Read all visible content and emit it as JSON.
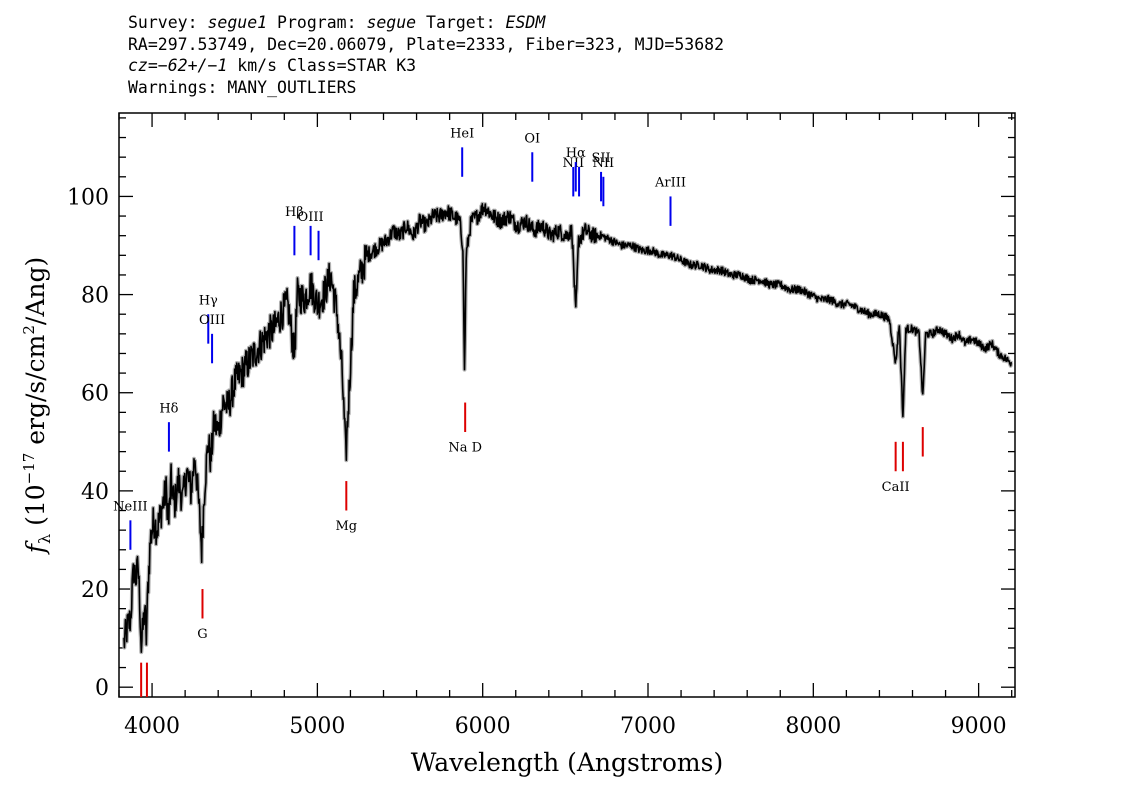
{
  "header": {
    "line1": {
      "survey_label": "Survey: ",
      "survey": "segue1",
      "program_label": " Program: ",
      "program": "segue",
      "target_label": " Target: ",
      "target": "ESDM"
    },
    "line2": "RA=297.53749, Dec=20.06079, Plate=2333, Fiber=323, MJD=53682",
    "line3": {
      "cz": "cz",
      "value": "=−62+/−1",
      "rest": " km/s Class=STAR K3"
    },
    "line4": "Warnings: MANY_OUTLIERS"
  },
  "colors": {
    "spectrum": "#000000",
    "error_band": "#b0b0b0",
    "emission": "#0000ee",
    "absorption": "#dd0000"
  },
  "chart_data": {
    "type": "line",
    "title": "",
    "xlabel": "Wavelength (Angstroms)",
    "ylabel": "fλ (10−17 erg/s/cm2/Ang)",
    "ylabel_parts": {
      "f": "f",
      "sub": "λ",
      "pre": " (10",
      "exp1": "−17",
      "mid": " erg/s/cm",
      "exp2": "2",
      "post": "/Ang)"
    },
    "xlim": [
      3800,
      9220
    ],
    "ylim": [
      -2,
      117
    ],
    "xticks": [
      4000,
      5000,
      6000,
      7000,
      8000,
      9000
    ],
    "xtick_labels": [
      "4000",
      "5000",
      "6000",
      "7000",
      "8000",
      "9000"
    ],
    "yticks": [
      0,
      20,
      40,
      60,
      80,
      100
    ],
    "ytick_labels": [
      "0",
      "20",
      "40",
      "60",
      "80",
      "100"
    ],
    "grid": false,
    "series": [
      {
        "values": [
          [
            3830,
            9
          ],
          [
            3850,
            12
          ],
          [
            3870,
            14
          ],
          [
            3880,
            20
          ],
          [
            3890,
            24
          ],
          [
            3905,
            22
          ],
          [
            3915,
            25
          ],
          [
            3925,
            18
          ],
          [
            3935,
            8
          ],
          [
            3945,
            12
          ],
          [
            3955,
            16
          ],
          [
            3965,
            10
          ],
          [
            3975,
            20
          ],
          [
            3990,
            30
          ],
          [
            4010,
            34
          ],
          [
            4030,
            32
          ],
          [
            4050,
            35
          ],
          [
            4070,
            38
          ],
          [
            4085,
            40
          ],
          [
            4101,
            34
          ],
          [
            4115,
            42
          ],
          [
            4135,
            37
          ],
          [
            4160,
            42
          ],
          [
            4185,
            38
          ],
          [
            4210,
            44
          ],
          [
            4235,
            40
          ],
          [
            4260,
            47
          ],
          [
            4285,
            36
          ],
          [
            4300,
            28
          ],
          [
            4320,
            42
          ],
          [
            4340,
            50
          ],
          [
            4355,
            46
          ],
          [
            4375,
            54
          ],
          [
            4400,
            52
          ],
          [
            4430,
            58
          ],
          [
            4460,
            57
          ],
          [
            4500,
            62
          ],
          [
            4540,
            64
          ],
          [
            4580,
            66
          ],
          [
            4620,
            68
          ],
          [
            4660,
            70
          ],
          [
            4700,
            72
          ],
          [
            4740,
            73
          ],
          [
            4780,
            76
          ],
          [
            4820,
            78
          ],
          [
            4861,
            68
          ],
          [
            4880,
            80
          ],
          [
            4920,
            79
          ],
          [
            4960,
            82
          ],
          [
            5000,
            78
          ],
          [
            5040,
            80
          ],
          [
            5080,
            84
          ],
          [
            5120,
            76
          ],
          [
            5150,
            64
          ],
          [
            5172,
            47
          ],
          [
            5195,
            62
          ],
          [
            5220,
            80
          ],
          [
            5260,
            84
          ],
          [
            5300,
            88
          ],
          [
            5340,
            89
          ],
          [
            5380,
            90
          ],
          [
            5420,
            91
          ],
          [
            5460,
            93
          ],
          [
            5500,
            92
          ],
          [
            5540,
            94
          ],
          [
            5580,
            92
          ],
          [
            5620,
            95
          ],
          [
            5660,
            94
          ],
          [
            5700,
            96
          ],
          [
            5740,
            96
          ],
          [
            5780,
            97
          ],
          [
            5820,
            96
          ],
          [
            5860,
            95
          ],
          [
            5880,
            90
          ],
          [
            5890,
            64
          ],
          [
            5900,
            88
          ],
          [
            5930,
            95
          ],
          [
            5970,
            96
          ],
          [
            6010,
            98
          ],
          [
            6060,
            96
          ],
          [
            6110,
            95
          ],
          [
            6160,
            96
          ],
          [
            6210,
            94
          ],
          [
            6260,
            95
          ],
          [
            6310,
            93
          ],
          [
            6360,
            94
          ],
          [
            6410,
            92
          ],
          [
            6460,
            93
          ],
          [
            6500,
            92
          ],
          [
            6540,
            93
          ],
          [
            6563,
            76
          ],
          [
            6580,
            91
          ],
          [
            6620,
            93
          ],
          [
            6670,
            92
          ],
          [
            6720,
            92
          ],
          [
            6780,
            91
          ],
          [
            6840,
            90
          ],
          [
            6900,
            90
          ],
          [
            6960,
            89
          ],
          [
            7020,
            89
          ],
          [
            7080,
            88
          ],
          [
            7140,
            88
          ],
          [
            7200,
            87
          ],
          [
            7260,
            86
          ],
          [
            7320,
            86
          ],
          [
            7380,
            85
          ],
          [
            7440,
            85
          ],
          [
            7500,
            84
          ],
          [
            7560,
            84
          ],
          [
            7620,
            83
          ],
          [
            7680,
            83
          ],
          [
            7740,
            82
          ],
          [
            7800,
            82
          ],
          [
            7860,
            81
          ],
          [
            7920,
            81
          ],
          [
            7980,
            80
          ],
          [
            8040,
            79
          ],
          [
            8100,
            79
          ],
          [
            8160,
            78
          ],
          [
            8220,
            78
          ],
          [
            8280,
            77
          ],
          [
            8340,
            76
          ],
          [
            8400,
            76
          ],
          [
            8460,
            75
          ],
          [
            8498,
            66
          ],
          [
            8520,
            74
          ],
          [
            8542,
            55
          ],
          [
            8560,
            73
          ],
          [
            8600,
            73
          ],
          [
            8640,
            72
          ],
          [
            8662,
            59
          ],
          [
            8680,
            72
          ],
          [
            8720,
            72
          ],
          [
            8760,
            73
          ],
          [
            8800,
            72
          ],
          [
            8840,
            71
          ],
          [
            8880,
            72
          ],
          [
            8920,
            70
          ],
          [
            8960,
            71
          ],
          [
            9000,
            70
          ],
          [
            9040,
            69
          ],
          [
            9080,
            70
          ],
          [
            9120,
            68
          ],
          [
            9160,
            67
          ],
          [
            9200,
            66
          ]
        ]
      }
    ],
    "emission_lines": [
      {
        "label": "NeIII",
        "wavelength": 3869,
        "y_bottom": 28,
        "y_top": 34,
        "label_y": 36
      },
      {
        "label": "Hδ",
        "wavelength": 4102,
        "y_bottom": 48,
        "y_top": 54,
        "label_y": 56
      },
      {
        "label": "Hγ",
        "wavelength": 4340,
        "y_bottom": 70,
        "y_top": 76,
        "label_y": 78
      },
      {
        "label": "OIII",
        "wavelength": 4363,
        "y_bottom": 66,
        "y_top": 72,
        "label_y": 74
      },
      {
        "label": "Hβ",
        "wavelength": 4861,
        "y_bottom": 88,
        "y_top": 94,
        "label_y": 96
      },
      {
        "label": "OIII",
        "wavelength": 4959,
        "y_bottom": 88,
        "y_top": 94,
        "label_y": 95
      },
      {
        "label": "",
        "wavelength": 5007,
        "y_bottom": 87,
        "y_top": 93,
        "label_y": 0
      },
      {
        "label": "HeI",
        "wavelength": 5876,
        "y_bottom": 104,
        "y_top": 110,
        "label_y": 112
      },
      {
        "label": "OI",
        "wavelength": 6300,
        "y_bottom": 103,
        "y_top": 109,
        "label_y": 111
      },
      {
        "label": "NII",
        "wavelength": 6548,
        "y_bottom": 100,
        "y_top": 106,
        "label_y": 106
      },
      {
        "label": "Hα",
        "wavelength": 6563,
        "y_bottom": 101,
        "y_top": 107,
        "label_y": 108
      },
      {
        "label": "",
        "wavelength": 6583,
        "y_bottom": 100,
        "y_top": 106,
        "label_y": 0
      },
      {
        "label": "SII",
        "wavelength": 6716,
        "y_bottom": 99,
        "y_top": 105,
        "label_y": 107
      },
      {
        "label": "NII",
        "wavelength": 6730,
        "y_bottom": 98,
        "y_top": 104,
        "label_y": 106
      },
      {
        "label": "ArIII",
        "wavelength": 7136,
        "y_bottom": 94,
        "y_top": 100,
        "label_y": 102
      }
    ],
    "absorption_lines": [
      {
        "label": "",
        "wavelength": 3934,
        "y_bottom": -2,
        "y_top": 5,
        "label_y": 0
      },
      {
        "label": "",
        "wavelength": 3969,
        "y_bottom": -2,
        "y_top": 5,
        "label_y": 0
      },
      {
        "label": "G",
        "wavelength": 4305,
        "y_bottom": 14,
        "y_top": 20,
        "label_y": 10
      },
      {
        "label": "Mg",
        "wavelength": 5175,
        "y_bottom": 36,
        "y_top": 42,
        "label_y": 32
      },
      {
        "label": "Na  D",
        "wavelength": 5894,
        "y_bottom": 52,
        "y_top": 58,
        "label_y": 48
      },
      {
        "label": "CaII",
        "wavelength": 8498,
        "y_bottom": 44,
        "y_top": 50,
        "label_y": 40
      },
      {
        "label": "",
        "wavelength": 8542,
        "y_bottom": 44,
        "y_top": 50,
        "label_y": 0
      },
      {
        "label": "",
        "wavelength": 8662,
        "y_bottom": 47,
        "y_top": 53,
        "label_y": 0
      }
    ]
  }
}
